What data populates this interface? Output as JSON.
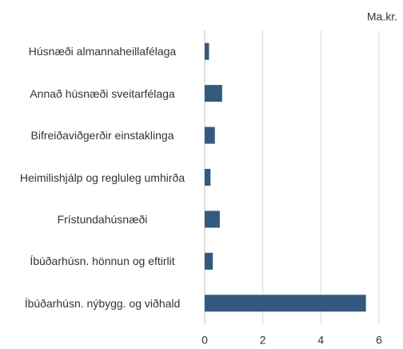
{
  "chart_data": {
    "type": "barh",
    "unit_label": "Ma.kr.",
    "categories": [
      "Húsnæði almannaheillafélaga",
      "Annað húsnæði sveitarfélaga",
      "Bifreiðaviðgerðir einstaklinga",
      "Heimilishjálp og regluleg umhirða",
      "Frístundahúsnæði",
      "Íbúðarhúsn. hönnun og eftirlit",
      "Íbúðarhúsn. nýbygg. og viðhald"
    ],
    "values": [
      0.15,
      0.6,
      0.35,
      0.2,
      0.52,
      0.28,
      5.55
    ],
    "color": "#335a7e",
    "xlim": [
      0,
      6
    ],
    "xticks": [
      0,
      2,
      4,
      6
    ],
    "grid": true
  }
}
